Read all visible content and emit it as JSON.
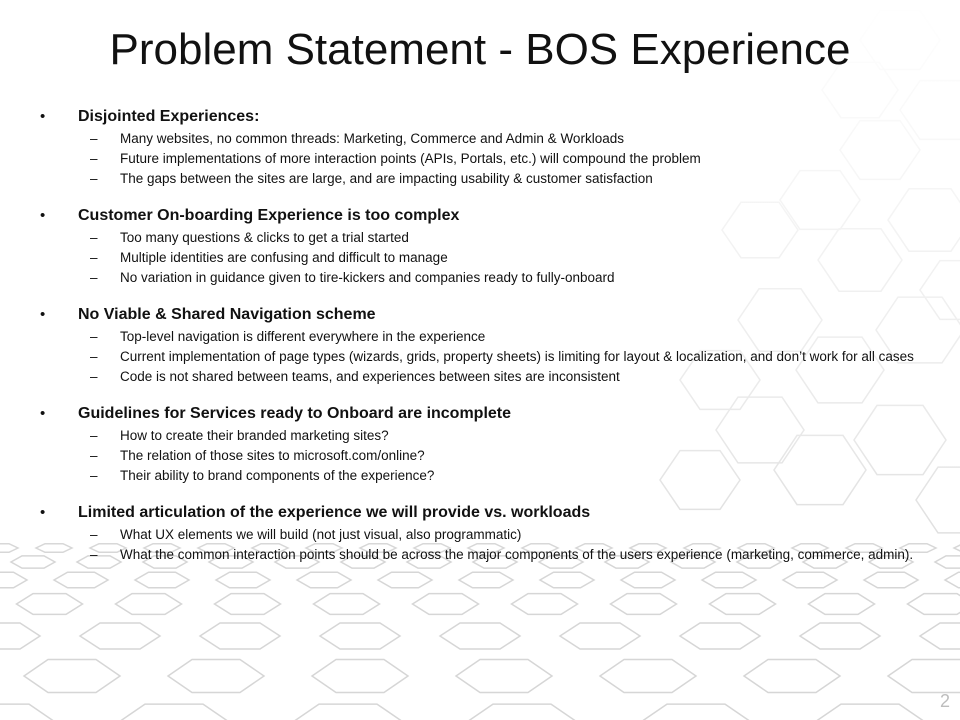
{
  "title": "Problem Statement - BOS Experience",
  "bullet_glyph": "•",
  "dash_glyph": "–",
  "sections": [
    {
      "heading": "Disjointed Experiences:",
      "items": [
        "Many websites, no common threads:  Marketing, Commerce and Admin & Workloads",
        "Future implementations of more interaction points (APIs, Portals, etc.) will compound the problem",
        "The gaps between the sites are large, and are impacting usability & customer satisfaction"
      ]
    },
    {
      "heading": "Customer On-boarding Experience is too complex",
      "items": [
        "Too many questions & clicks to get a trial started",
        "Multiple identities are confusing and difficult to manage",
        "No variation in guidance given to tire-kickers and companies ready to fully-onboard"
      ]
    },
    {
      "heading": "No Viable & Shared Navigation scheme",
      "items": [
        "Top-level navigation is different everywhere in the experience",
        "Current implementation of page types (wizards, grids, property sheets) is limiting for layout & localization, and don’t work for all cases",
        "Code is not shared between teams, and experiences between sites are inconsistent"
      ]
    },
    {
      "heading": "Guidelines for Services ready to Onboard are incomplete",
      "items": [
        "How to create their branded marketing sites?",
        "The relation of those sites to microsoft.com/online?",
        "Their ability to brand components of the experience?"
      ]
    },
    {
      "heading": "Limited articulation of the experience we will provide  vs. workloads",
      "items": [
        "What UX elements we will build  (not just visual, also programmatic)",
        "What the common interaction points should be across the major components of the users experience (marketing, commerce, admin)."
      ]
    }
  ],
  "page_number": "2",
  "colors": {
    "text": "#111111",
    "background": "#ffffff",
    "hex_pattern": "#d9d9d9",
    "page_number": "#bdbdbd"
  }
}
